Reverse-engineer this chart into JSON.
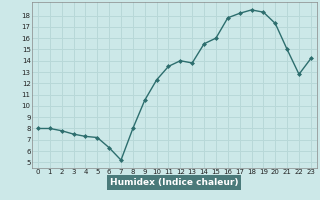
{
  "x": [
    0,
    1,
    2,
    3,
    4,
    5,
    6,
    7,
    8,
    9,
    10,
    11,
    12,
    13,
    14,
    15,
    16,
    17,
    18,
    19,
    20,
    21,
    22,
    23
  ],
  "y": [
    8.0,
    8.0,
    7.8,
    7.5,
    7.3,
    7.2,
    6.3,
    5.2,
    8.0,
    10.5,
    12.3,
    13.5,
    14.0,
    13.8,
    15.5,
    16.0,
    17.8,
    18.2,
    18.5,
    18.3,
    17.3,
    15.0,
    12.8,
    14.2
  ],
  "xlabel": "Humidex (Indice chaleur)",
  "xlim": [
    -0.5,
    23.5
  ],
  "ylim": [
    4.5,
    19.2
  ],
  "xticks": [
    0,
    1,
    2,
    3,
    4,
    5,
    6,
    7,
    8,
    9,
    10,
    11,
    12,
    13,
    14,
    15,
    16,
    17,
    18,
    19,
    20,
    21,
    22,
    23
  ],
  "yticks": [
    5,
    6,
    7,
    8,
    9,
    10,
    11,
    12,
    13,
    14,
    15,
    16,
    17,
    18
  ],
  "line_color": "#2d6e6e",
  "bg_color": "#cce8e8",
  "grid_color": "#b8d8d8",
  "bottom_bar_color": "#4a7a7a",
  "xlabel_color": "#ffffff",
  "marker_size": 2.0,
  "line_width": 1.0
}
